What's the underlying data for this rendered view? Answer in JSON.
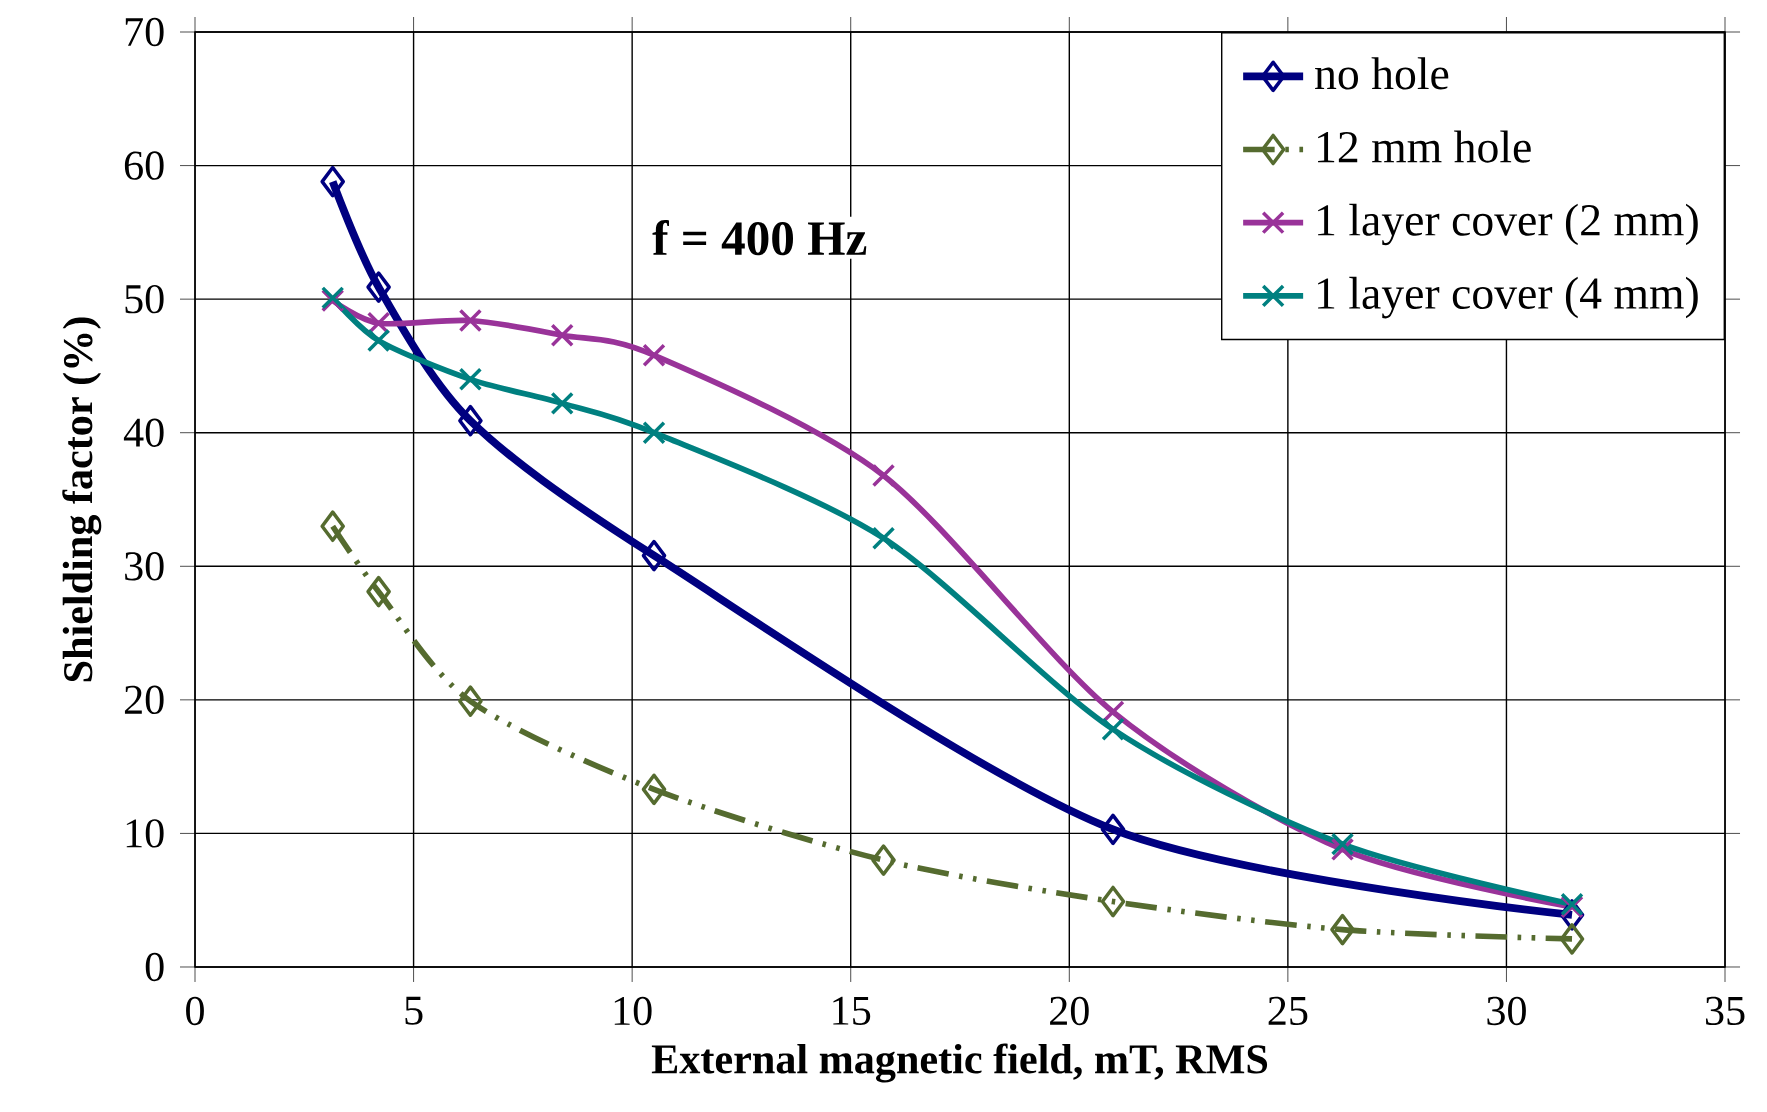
{
  "chart_data": {
    "type": "line",
    "xlabel": "External magnetic field, mT, RMS",
    "ylabel": "Shielding factor (%)",
    "annotations": [
      "f = 400 Hz"
    ],
    "xlim": [
      0,
      35
    ],
    "xticks": [
      0,
      5,
      10,
      15,
      20,
      25,
      30,
      35
    ],
    "ylim": [
      0,
      70
    ],
    "yticks": [
      0,
      10,
      20,
      30,
      40,
      50,
      60,
      70
    ],
    "grid": true,
    "legend": "top right",
    "series": [
      {
        "name": "no hole",
        "color": "#000080",
        "marker": "diamond",
        "line_style": "solid",
        "x": [
          3.15,
          4.2,
          6.3,
          10.5,
          21,
          31.5
        ],
        "values": [
          58.8,
          50.9,
          40.9,
          30.8,
          10.3,
          3.9
        ]
      },
      {
        "name": "12 mm hole",
        "color": "#556b2f",
        "marker": "diamond",
        "line_style": "dashed",
        "x": [
          3.15,
          4.2,
          6.3,
          10.5,
          15.75,
          21,
          26.25,
          31.5
        ],
        "values": [
          33.0,
          28.1,
          19.9,
          13.3,
          8.0,
          4.9,
          2.8,
          2.1
        ]
      },
      {
        "name": "1 layer cover (2 mm)",
        "color": "#993399",
        "marker": "cross",
        "line_style": "solid",
        "x": [
          3.15,
          4.2,
          6.3,
          8.4,
          10.5,
          15.75,
          21,
          26.25,
          31.5
        ],
        "values": [
          49.9,
          48.2,
          48.4,
          47.3,
          45.8,
          36.8,
          19.1,
          8.8,
          4.5
        ]
      },
      {
        "name": "1 layer cover (4 mm)",
        "color": "#008080",
        "marker": "cross",
        "line_style": "solid",
        "x": [
          3.15,
          4.2,
          6.3,
          8.4,
          10.5,
          15.75,
          21,
          26.25,
          31.5
        ],
        "values": [
          50.1,
          46.9,
          44.0,
          42.2,
          40.0,
          32.1,
          17.8,
          9.2,
          4.7
        ]
      }
    ]
  }
}
